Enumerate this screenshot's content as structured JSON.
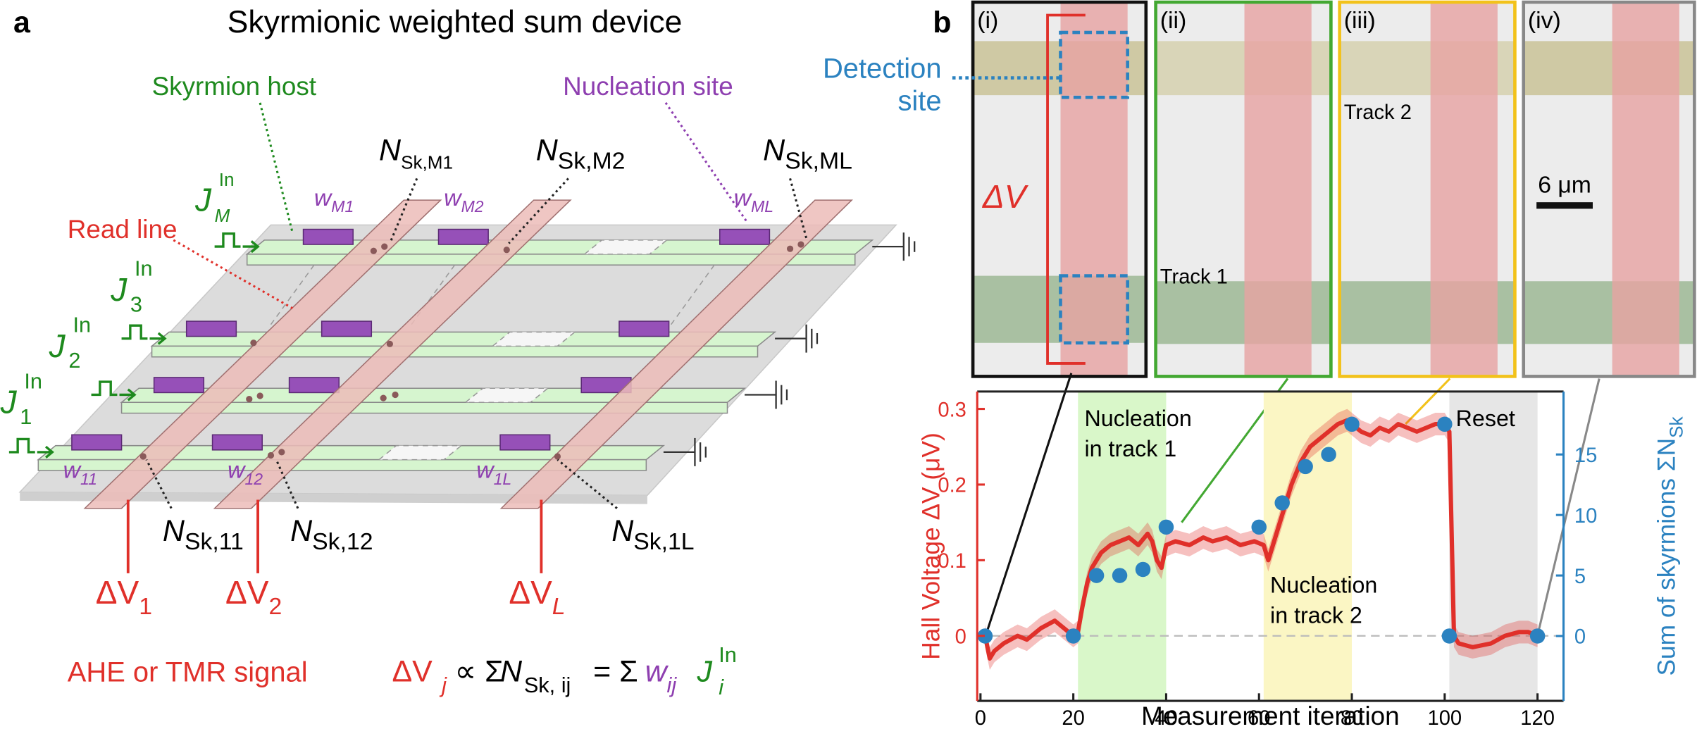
{
  "panel_a": {
    "label": "a",
    "title": "Skyrmionic weighted sum device",
    "skyrmion_host": "Skyrmion host",
    "nucleation_site": "Nucleation site",
    "read_line": "Read line",
    "counts": [
      {
        "main": "N",
        "sub": "Sk,M1"
      },
      {
        "main": "N",
        "sub": "Sk,M2"
      },
      {
        "main": "N",
        "sub": "Sk,ML"
      },
      {
        "main": "N",
        "sub": "Sk,11"
      },
      {
        "main": "N",
        "sub": "Sk,12"
      },
      {
        "main": "N",
        "sub": "Sk,1L"
      }
    ],
    "currents": [
      {
        "main": "J",
        "sub": "M",
        "sup": "In"
      },
      {
        "main": "J",
        "sub": "3",
        "sup": "In"
      },
      {
        "main": "J",
        "sub": "2",
        "sup": "In"
      },
      {
        "main": "J",
        "sub": "1",
        "sup": "In"
      }
    ],
    "weights": [
      {
        "main": "w",
        "sub": "M1"
      },
      {
        "main": "w",
        "sub": "M2"
      },
      {
        "main": "w",
        "sub": "ML"
      },
      {
        "main": "w",
        "sub": "11"
      },
      {
        "main": "w",
        "sub": "12"
      },
      {
        "main": "w",
        "sub": "1L"
      }
    ],
    "voltages": [
      {
        "main": "ΔV",
        "sub": "1"
      },
      {
        "main": "ΔV",
        "sub": "2"
      },
      {
        "main": "ΔV",
        "sub": "L"
      }
    ],
    "signal": "AHE or TMR signal",
    "formula": {
      "lhs": "ΔV",
      "lhs_sub": "j",
      "prop": "∝ Σ",
      "n": "N",
      "n_sub": "Sk, ij",
      "eq": "= Σ",
      "w": "w",
      "w_sub": "ij",
      "j": "J",
      "j_sub": "i",
      "j_sup": "In"
    }
  },
  "panel_b": {
    "label": "b",
    "images": [
      "(i)",
      "(ii)",
      "(iii)",
      "(iv)"
    ],
    "detection_site": [
      "Detection",
      "site"
    ],
    "track1": "Track 1",
    "track2": "Track 2",
    "scale_bar": "6 μm",
    "delta_v": "ΔV"
  },
  "chart_data": {
    "type": "line",
    "xlabel": "Measurement iteration",
    "ylabel": "Hall Voltage ΔV (μV)",
    "y2label": {
      "main": "Sum of skyrmions ΣN",
      "sub": "Sk"
    },
    "xlim": [
      -0.7,
      125.6
    ],
    "xticks": [
      0,
      20,
      40,
      60,
      80,
      100,
      120
    ],
    "ylim": [
      -0.086,
      0.323
    ],
    "yticks": [
      0,
      0.1,
      0.2,
      0.3
    ],
    "y2lim": [
      -5.36,
      20.2
    ],
    "y2ticks": [
      0,
      5,
      10,
      15
    ],
    "baseline": 0,
    "regions": [
      {
        "xlim": [
          21,
          40
        ],
        "color": "#d9f7c9",
        "label": [
          "Nucleation",
          "in track 1"
        ],
        "label_anchor": "top"
      },
      {
        "xlim": [
          61,
          80
        ],
        "color": "#fbf6c4",
        "label": [
          "Nucleation",
          "in track 2"
        ],
        "label_anchor": "bottom"
      },
      {
        "xlim": [
          101,
          120
        ],
        "color": "#e6e6e6",
        "label": [
          "Reset"
        ],
        "label_anchor": "top"
      }
    ],
    "series": [
      {
        "color": "#e0302a",
        "band": 0.015,
        "x": [
          1,
          2,
          3,
          5,
          8,
          10,
          13,
          16,
          18,
          20,
          21,
          22,
          23,
          24,
          26,
          28,
          30,
          32,
          34,
          36,
          37,
          38,
          39,
          40,
          42,
          45,
          48,
          50,
          53,
          56,
          59,
          61,
          62,
          63,
          65,
          67,
          69,
          71,
          73,
          75,
          77,
          79,
          80,
          82,
          84,
          86,
          88,
          90,
          92,
          94,
          96,
          98,
          100,
          101,
          102,
          103,
          106,
          110,
          113,
          116,
          118,
          120
        ],
        "values": [
          0,
          -0.03,
          -0.02,
          -0.01,
          0,
          -0.005,
          0.01,
          0.02,
          0.01,
          0,
          0.005,
          0.04,
          0.07,
          0.09,
          0.11,
          0.12,
          0.125,
          0.13,
          0.12,
          0.135,
          0.125,
          0.1,
          0.09,
          0.12,
          0.125,
          0.12,
          0.13,
          0.125,
          0.13,
          0.12,
          0.125,
          0.12,
          0.1,
          0.12,
          0.16,
          0.2,
          0.23,
          0.25,
          0.26,
          0.27,
          0.28,
          0.285,
          0.28,
          0.27,
          0.265,
          0.275,
          0.27,
          0.28,
          0.275,
          0.27,
          0.275,
          0.28,
          0.28,
          0.27,
          0,
          -0.01,
          -0.015,
          -0.01,
          0,
          0.005,
          0.005,
          0
        ]
      },
      {
        "color": "#2b82c0",
        "axis": "y2",
        "marker": "dot",
        "x": [
          1,
          20,
          25,
          30,
          35,
          40,
          60,
          65,
          70,
          75,
          80,
          100,
          101,
          120
        ],
        "values": [
          0,
          0,
          5,
          5,
          5.5,
          9,
          9,
          11,
          14,
          15,
          17.5,
          17.5,
          0,
          0
        ]
      }
    ]
  }
}
